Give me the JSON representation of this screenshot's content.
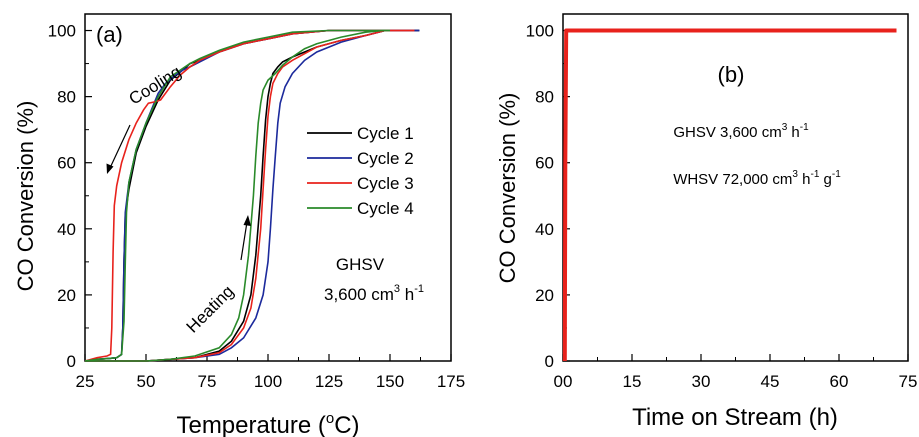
{
  "chart_data": [
    {
      "type": "line",
      "panel_label": "(a)",
      "xlabel_main": "Temperature (",
      "xlabel_sup": "o",
      "xlabel_end": "C)",
      "ylabel": "CO Conversion (%)",
      "xlim": [
        25,
        175
      ],
      "ylim": [
        0,
        105
      ],
      "xticks": [
        "25",
        "50",
        "75",
        "100",
        "125",
        "150",
        "175"
      ],
      "yticks": [
        "0",
        "20",
        "40",
        "60",
        "80",
        "100"
      ],
      "legend_position": "right",
      "annotations": {
        "cooling": "Cooling",
        "heating": "Heating",
        "ghsv_label": "GHSV",
        "ghsv_value": "3,600 cm",
        "ghsv_sup": "3",
        "ghsv_unit": " h",
        "ghsv_unit_sup": "-1"
      },
      "series": [
        {
          "name": "Cycle 1",
          "color": "#000000",
          "heating": {
            "x": [
              25,
              50,
              60,
              70,
              80,
              85,
              90,
              93,
              95,
              97,
              98,
              99,
              100,
              101,
              102,
              104,
              106,
              110,
              115,
              120,
              130,
              140,
              148,
              162
            ],
            "y": [
              0,
              0,
              0.5,
              1,
              3,
              6,
              12,
              20,
              32,
              50,
              62,
              73,
              80,
              84,
              87,
              89,
              90.5,
              92,
              93.5,
              95,
              97,
              98.5,
              100,
              100
            ]
          },
          "cooling": {
            "x": [
              162,
              140,
              125,
              110,
              100,
              90,
              80,
              72,
              68,
              65,
              60,
              55,
              50,
              46,
              43,
              41.5,
              41,
              40.5,
              40,
              38,
              35,
              30,
              25
            ],
            "y": [
              100,
              100,
              100,
              99,
              97.5,
              96,
              93.5,
              91,
              90,
              88,
              85,
              79,
              71,
              63,
              52,
              44,
              30,
              10,
              2,
              1,
              0.8,
              0.5,
              0
            ]
          }
        },
        {
          "name": "Cycle 2",
          "color": "#1c2a9c",
          "heating": {
            "x": [
              25,
              50,
              60,
              70,
              80,
              85,
              90,
              95,
              98,
              100,
              101,
              102,
              103,
              104,
              105,
              107,
              110,
              115,
              120,
              130,
              140,
              148,
              162
            ],
            "y": [
              0,
              0,
              0.5,
              1,
              2,
              4,
              7,
              13,
              20,
              30,
              40,
              52,
              62,
              72,
              78,
              83,
              87,
              91,
              93.5,
              96.5,
              98.5,
              100,
              100
            ]
          },
          "cooling": {
            "x": [
              162,
              140,
              125,
              110,
              100,
              90,
              80,
              72,
              68,
              65,
              62,
              58,
              55,
              50,
              46,
              43,
              41.5,
              41,
              40.5,
              40,
              38,
              35,
              30,
              25
            ],
            "y": [
              100,
              100,
              100,
              99,
              97.5,
              96,
              93.5,
              90.5,
              89,
              88,
              86.5,
              84,
              81,
              72,
              64,
              54,
              45,
              30,
              10,
              2,
              1,
              0.8,
              0.5,
              0
            ]
          }
        },
        {
          "name": "Cycle 3",
          "color": "#e8221c",
          "heating": {
            "x": [
              25,
              50,
              60,
              70,
              80,
              85,
              90,
              93,
              95,
              97,
              98,
              99,
              100,
              101,
              102,
              104,
              106,
              110,
              115,
              120,
              130,
              140,
              148,
              160
            ],
            "y": [
              0,
              0,
              0.5,
              1,
              2.5,
              5,
              10,
              16,
              25,
              40,
              52,
              64,
              74,
              80,
              84,
              87,
              89,
              91,
              93,
              95,
              97,
              98.5,
              100,
              100
            ]
          },
          "cooling": {
            "x": [
              160,
              140,
              125,
              110,
              100,
              90,
              80,
              72,
              68,
              64,
              60,
              56,
              54,
              51,
              49,
              46,
              43,
              40,
              38,
              37,
              36.5,
              36,
              35.5,
              34,
              30,
              25
            ],
            "y": [
              100,
              100,
              100,
              99,
              97.5,
              96,
              93.5,
              91,
              89,
              86.5,
              83,
              79,
              78.5,
              78,
              76,
              72,
              67,
              60,
              53,
              47,
              33,
              10,
              2,
              1.5,
              1,
              0
            ]
          }
        },
        {
          "name": "Cycle 4",
          "color": "#2a8a2a",
          "heating": {
            "x": [
              25,
              50,
              60,
              70,
              80,
              85,
              88,
              90,
              92,
              94,
              95,
              96,
              97,
              98,
              100,
              103,
              106,
              110,
              115,
              120,
              130,
              140,
              147,
              150
            ],
            "y": [
              0,
              0,
              0.5,
              1.5,
              4,
              8,
              13,
              20,
              32,
              50,
              62,
              72,
              78,
              82,
              85,
              87,
              89.5,
              92,
              94.5,
              96,
              98,
              99.5,
              100,
              100
            ]
          },
          "cooling": {
            "x": [
              150,
              140,
              125,
              110,
              100,
              90,
              80,
              72,
              68,
              65,
              60,
              55,
              50,
              46,
              43,
              42,
              41.5,
              41,
              40,
              38,
              35,
              30,
              25
            ],
            "y": [
              100,
              100,
              100,
              99.5,
              98,
              96.5,
              94,
              91.5,
              90,
              88.5,
              86,
              80,
              72,
              64,
              54,
              45,
              30,
              12,
              2,
              1,
              0.8,
              0.5,
              0
            ]
          }
        }
      ]
    },
    {
      "type": "line",
      "panel_label": "(b)",
      "xlabel": "Time on Stream (h)",
      "ylabel": "CO Conversion (%)",
      "xlim": [
        0,
        75
      ],
      "ylim": [
        0,
        105
      ],
      "xticks": [
        "00",
        "15",
        "30",
        "45",
        "60",
        "75"
      ],
      "yticks": [
        "0",
        "20",
        "40",
        "60",
        "80",
        "100"
      ],
      "annotations": {
        "ghsv_label": "GHSV 3,600 cm",
        "ghsv_sup": "3",
        "ghsv_unit": " h",
        "ghsv_unit_sup": "-1",
        "whsv_label": "WHSV 72,000 cm",
        "whsv_sup": "3",
        "whsv_unit": "  h",
        "whsv_unit_sup": "-1",
        "whsv_unit2": " g",
        "whsv_unit2_sup": "-1"
      },
      "series": [
        {
          "color": "#e8221c",
          "x": [
            0.4,
            0.5,
            0.7,
            1,
            5,
            10,
            20,
            30,
            40,
            50,
            60,
            70,
            72.5
          ],
          "y": [
            0,
            60,
            100,
            100,
            100,
            100,
            100,
            100,
            100,
            100,
            100,
            100,
            100
          ]
        }
      ]
    }
  ]
}
